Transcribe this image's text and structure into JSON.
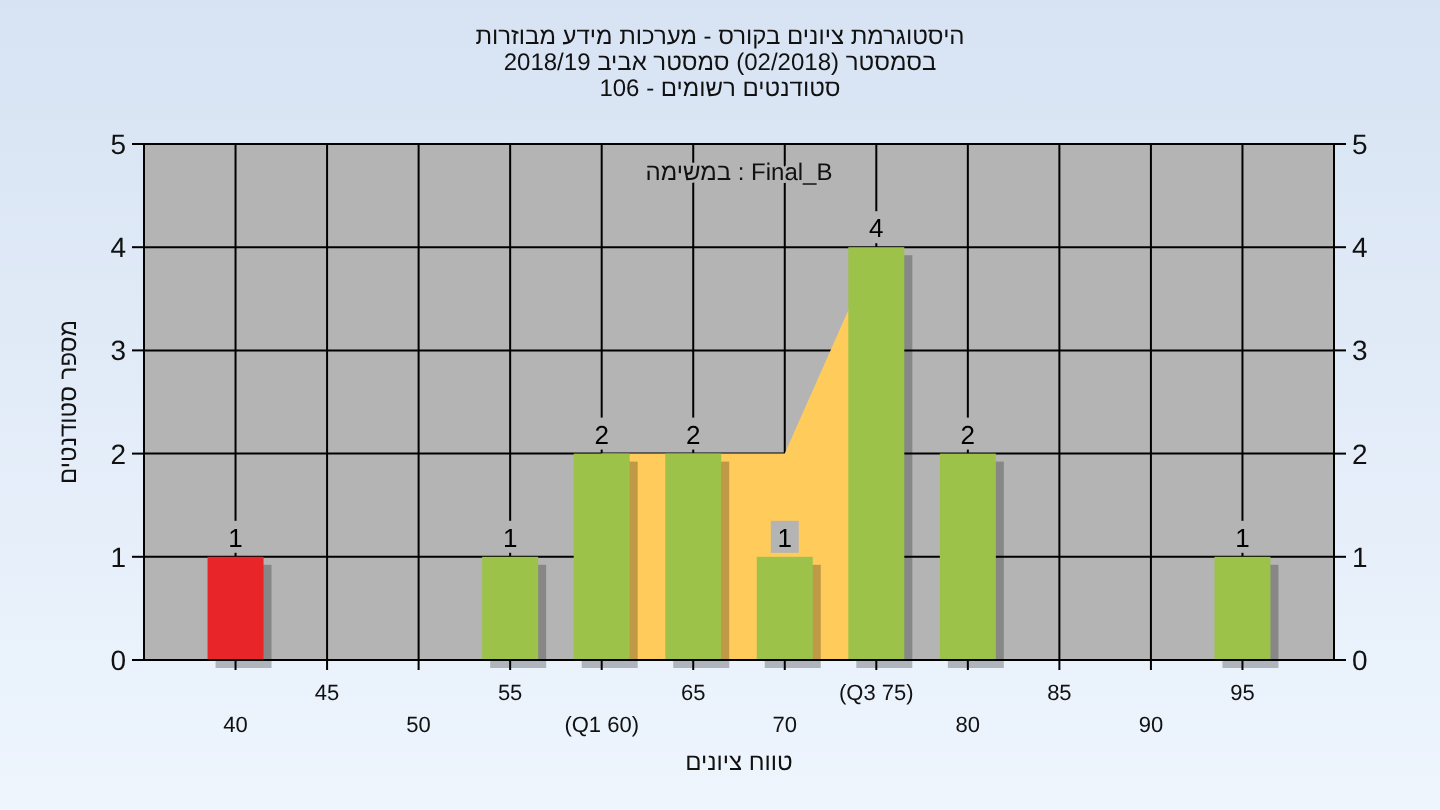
{
  "chart_data": {
    "type": "bar",
    "title": "היסטוגרמת ציונים בקורס - מערכות מידע מבוזרות",
    "subtitle": "בסמסטר (02/2018) סמסטר אביב 2018/19\nסטודנטים רשומים - 106",
    "xlabel": "טווח ציונים",
    "ylabel": "מספר סטודנטים",
    "annotations": [
      "Final_B : במשימה"
    ],
    "categories": [
      "40",
      "45",
      "50",
      "55",
      "(Q1 60)",
      "65",
      "70",
      "(Q3 75)",
      "80",
      "85",
      "90",
      "95"
    ],
    "series": [
      {
        "type": "area",
        "color": "#ffcc5c",
        "values": [
          null,
          null,
          null,
          null,
          2,
          2,
          2,
          4,
          null,
          null,
          null,
          null
        ]
      },
      {
        "colors": [
          "#e8262a",
          "#9cc24a",
          "#9cc24a",
          "#9cc24a",
          "#9cc24a",
          "#9cc24a",
          "#9cc24a",
          "#9cc24a",
          "#9cc24a",
          "#9cc24a",
          "#9cc24a",
          "#9cc24a"
        ],
        "values": [
          1,
          0,
          0,
          1,
          2,
          2,
          1,
          4,
          2,
          0,
          0,
          1
        ],
        "value_labels": [
          "1",
          null,
          null,
          "1",
          "2",
          "2",
          "1",
          "4",
          "2",
          null,
          null,
          "1"
        ]
      }
    ],
    "ylim": [
      0,
      5
    ],
    "yticks": [
      0,
      1,
      2,
      3,
      4,
      5
    ],
    "y2lim": [
      0,
      5
    ],
    "y2ticks": [
      0,
      1,
      2,
      3,
      4,
      5
    ],
    "grid": true
  }
}
